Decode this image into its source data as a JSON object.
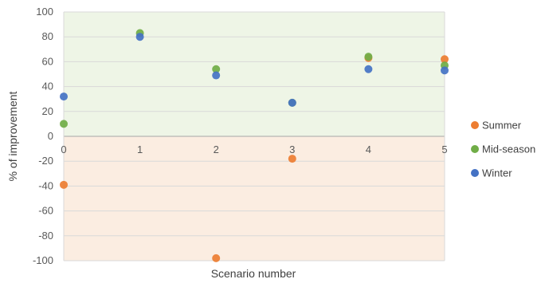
{
  "chart_data": {
    "type": "scatter",
    "xlabel": "Scenario number",
    "ylabel": "% of improvement",
    "xlim": [
      0,
      5
    ],
    "ylim": [
      -100,
      100
    ],
    "x_ticks": [
      0,
      1,
      2,
      3,
      4,
      5
    ],
    "y_ticks": [
      -100,
      -80,
      -60,
      -40,
      -20,
      0,
      20,
      40,
      60,
      80,
      100
    ],
    "grid": "horizontal",
    "legend_position": "right",
    "background_bands": {
      "positive_color": "#eef5e6",
      "negative_color": "#fbede1"
    },
    "series": [
      {
        "name": "Summer",
        "color": "#ed7d31",
        "points": [
          {
            "x": 0,
            "y": -39
          },
          {
            "x": 2,
            "y": -98
          },
          {
            "x": 3,
            "y": -18
          },
          {
            "x": 4,
            "y": 63
          },
          {
            "x": 5,
            "y": 62
          }
        ]
      },
      {
        "name": "Mid-season",
        "color": "#70ad47",
        "points": [
          {
            "x": 0,
            "y": 10
          },
          {
            "x": 1,
            "y": 83
          },
          {
            "x": 2,
            "y": 54
          },
          {
            "x": 3,
            "y": 27
          },
          {
            "x": 4,
            "y": 64
          },
          {
            "x": 5,
            "y": 57
          }
        ]
      },
      {
        "name": "Winter",
        "color": "#4472c4",
        "points": [
          {
            "x": 0,
            "y": 32
          },
          {
            "x": 1,
            "y": 80
          },
          {
            "x": 2,
            "y": 49
          },
          {
            "x": 3,
            "y": 27
          },
          {
            "x": 4,
            "y": 54
          },
          {
            "x": 5,
            "y": 53
          }
        ]
      }
    ]
  }
}
